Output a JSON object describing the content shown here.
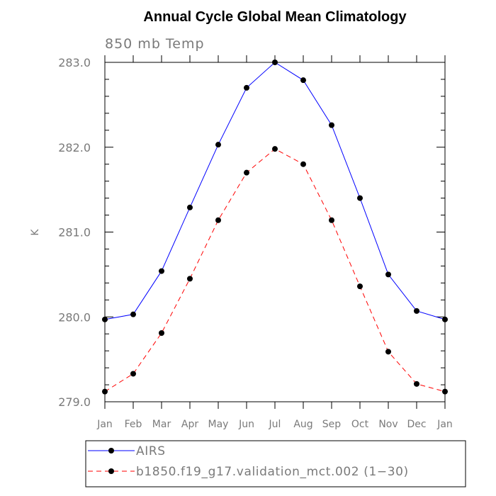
{
  "chart_data": {
    "type": "line",
    "title": "Annual Cycle Global Mean Climatology",
    "subtitle": "850 mb Temp",
    "xlabel": "",
    "ylabel": "K",
    "categories": [
      "Jan",
      "Feb",
      "Mar",
      "Apr",
      "May",
      "Jun",
      "Jul",
      "Aug",
      "Sep",
      "Oct",
      "Nov",
      "Dec",
      "Jan"
    ],
    "ylim": [
      279.0,
      283.0
    ],
    "yticks": [
      "279.0",
      "280.0",
      "281.0",
      "282.0",
      "283.0"
    ],
    "grid": false,
    "legend_position": "bottom",
    "series": [
      {
        "name": "AIRS",
        "color": "#0000ff",
        "style": "solid",
        "values": [
          279.97,
          280.03,
          280.54,
          281.29,
          282.03,
          282.7,
          283.0,
          282.79,
          282.26,
          281.4,
          280.5,
          280.07,
          279.97
        ]
      },
      {
        "name": "b1850.f19_g17.validation_mct.002 (1−30)",
        "color": "#ff0000",
        "style": "dashed",
        "values": [
          279.12,
          279.33,
          279.81,
          280.45,
          281.14,
          281.7,
          281.98,
          281.8,
          281.14,
          280.36,
          279.59,
          279.21,
          279.12
        ]
      }
    ]
  }
}
